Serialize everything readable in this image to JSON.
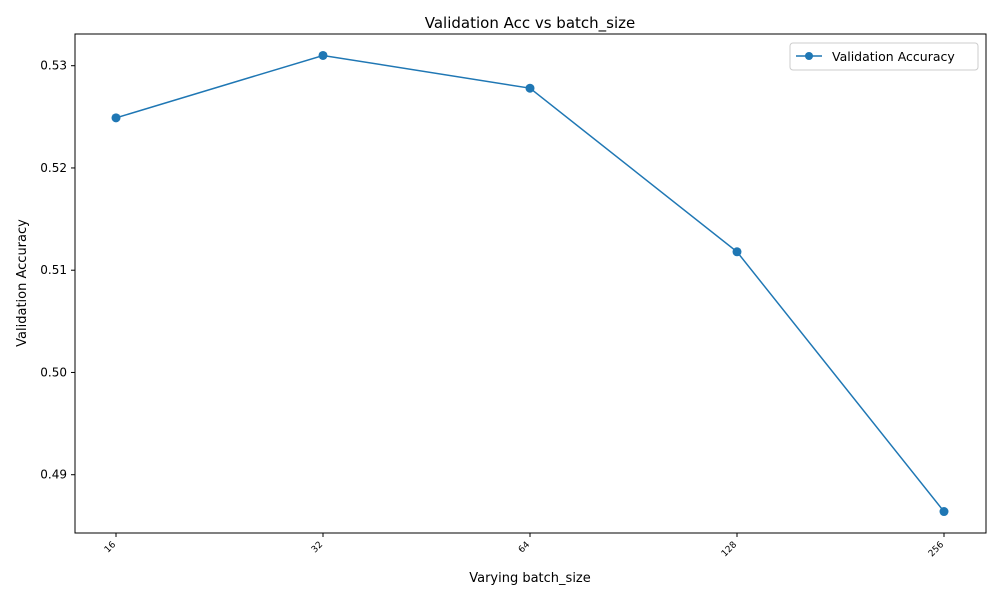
{
  "chart_data": {
    "type": "line",
    "title": "Validation Acc vs batch_size",
    "xlabel": "Varying batch_size",
    "ylabel": "Validation Accuracy",
    "categories": [
      "16",
      "32",
      "64",
      "128",
      "256"
    ],
    "series": [
      {
        "name": "Validation Accuracy",
        "values": [
          0.5249,
          0.531,
          0.5278,
          0.5118,
          0.4864
        ],
        "color": "#1f77b4",
        "marker": "circle"
      }
    ],
    "ylim": [
      0.4843,
      0.5331
    ],
    "yticks": [
      "0.49",
      "0.50",
      "0.51",
      "0.52",
      "0.53"
    ],
    "grid": false,
    "legend_position": "top-right"
  }
}
